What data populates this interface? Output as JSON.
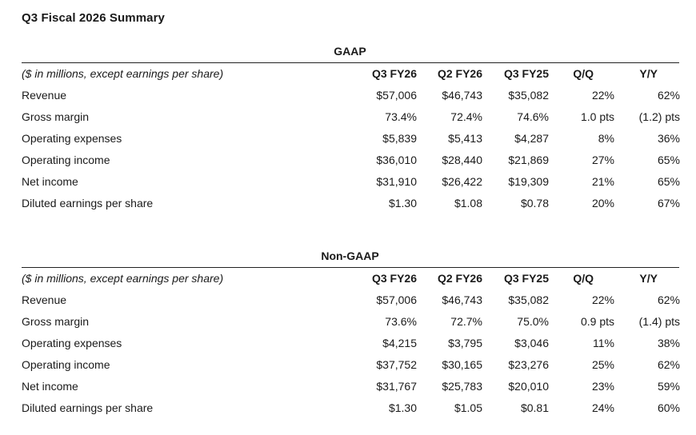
{
  "title": "Q3 Fiscal 2026 Summary",
  "sections": [
    {
      "title": "GAAP",
      "header": {
        "label": "($ in millions, except earnings per share)",
        "cols": [
          "Q3 FY26",
          "Q2 FY26",
          "Q3 FY25",
          "Q/Q",
          "Y/Y"
        ]
      },
      "rows": [
        {
          "label": "Revenue",
          "values": [
            "$57,006",
            "$46,743",
            "$35,082",
            "22%",
            "62%"
          ]
        },
        {
          "label": "Gross margin",
          "values": [
            "73.4%",
            "72.4%",
            "74.6%",
            "1.0 pts",
            "(1.2) pts"
          ]
        },
        {
          "label": "Operating expenses",
          "values": [
            "$5,839",
            "$5,413",
            "$4,287",
            "8%",
            "36%"
          ]
        },
        {
          "label": "Operating income",
          "values": [
            "$36,010",
            "$28,440",
            "$21,869",
            "27%",
            "65%"
          ]
        },
        {
          "label": "Net income",
          "values": [
            "$31,910",
            "$26,422",
            "$19,309",
            "21%",
            "65%"
          ]
        },
        {
          "label": "Diluted earnings per share",
          "values": [
            "$1.30",
            "$1.08",
            "$0.78",
            "20%",
            "67%"
          ]
        }
      ]
    },
    {
      "title": "Non-GAAP",
      "header": {
        "label": "($ in millions, except earnings per share)",
        "cols": [
          "Q3 FY26",
          "Q2 FY26",
          "Q3 FY25",
          "Q/Q",
          "Y/Y"
        ]
      },
      "rows": [
        {
          "label": "Revenue",
          "values": [
            "$57,006",
            "$46,743",
            "$35,082",
            "22%",
            "62%"
          ]
        },
        {
          "label": "Gross margin",
          "values": [
            "73.6%",
            "72.7%",
            "75.0%",
            "0.9 pts",
            "(1.4) pts"
          ]
        },
        {
          "label": "Operating expenses",
          "values": [
            "$4,215",
            "$3,795",
            "$3,046",
            "11%",
            "38%"
          ]
        },
        {
          "label": "Operating income",
          "values": [
            "$37,752",
            "$30,165",
            "$23,276",
            "25%",
            "62%"
          ]
        },
        {
          "label": "Net income",
          "values": [
            "$31,767",
            "$25,783",
            "$20,010",
            "23%",
            "59%"
          ]
        },
        {
          "label": "Diluted earnings per share",
          "values": [
            "$1.30",
            "$1.05",
            "$0.81",
            "24%",
            "60%"
          ]
        }
      ]
    }
  ]
}
